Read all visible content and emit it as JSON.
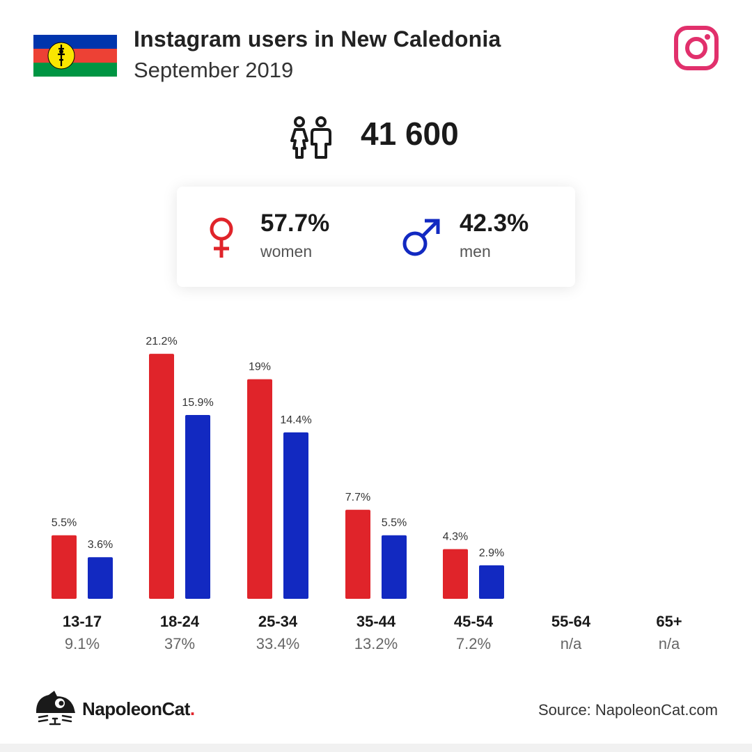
{
  "header": {
    "title": "Instagram users in New Caledonia",
    "subtitle": "September 2019"
  },
  "icons": {
    "flag": "new-caledonia-flag-icon",
    "platform": "instagram-icon",
    "users": "users-icon",
    "female": "female-symbol-icon",
    "male": "male-symbol-icon",
    "logo": "napoleoncat-logo"
  },
  "summary": {
    "total_users": "41 600",
    "women_pct": "57.7%",
    "women_label": "women",
    "men_pct": "42.3%",
    "men_label": "men"
  },
  "colors": {
    "women": "#e0242a",
    "men": "#1229c1",
    "instagram": "#e1306c",
    "flag_blue": "#0035ad",
    "flag_red": "#ed4135",
    "flag_green": "#009543",
    "flag_yellow": "#fae600"
  },
  "chart_data": {
    "type": "bar",
    "categories": [
      "13-17",
      "18-24",
      "25-34",
      "35-44",
      "45-54",
      "55-64",
      "65+"
    ],
    "category_totals": [
      "9.1%",
      "37%",
      "33.4%",
      "13.2%",
      "7.2%",
      "n/a",
      "n/a"
    ],
    "series": [
      {
        "color": "#e0242a",
        "values": [
          5.5,
          21.2,
          19,
          7.7,
          4.3,
          null,
          null
        ],
        "labels": [
          "5.5%",
          "21.2%",
          "19%",
          "7.7%",
          "4.3%",
          "",
          ""
        ]
      },
      {
        "color": "#1229c1",
        "values": [
          3.6,
          15.9,
          14.4,
          5.5,
          2.9,
          null,
          null
        ],
        "labels": [
          "3.6%",
          "15.9%",
          "14.4%",
          "5.5%",
          "2.9%",
          "",
          ""
        ]
      }
    ],
    "xlabel": "",
    "ylabel": "",
    "grid": false
  },
  "footer": {
    "brand_name": "NapoleonCat",
    "brand_dot": ".",
    "source": "Source: NapoleonCat.com"
  }
}
